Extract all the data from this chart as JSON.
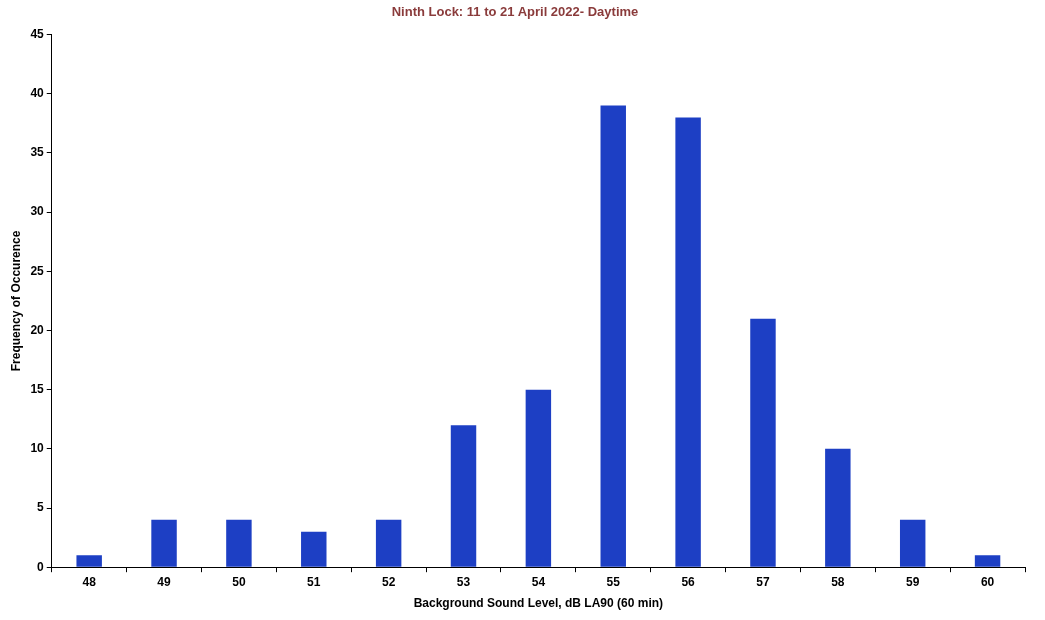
{
  "chart_data": {
    "type": "bar",
    "title": "Ninth Lock: 11 to 21 April 2022- Daytime",
    "xlabel": "Background Sound Level, dB LA90 (60 min)",
    "ylabel": "Frequency of Occurence",
    "categories": [
      "48",
      "49",
      "50",
      "51",
      "52",
      "53",
      "54",
      "55",
      "56",
      "57",
      "58",
      "59",
      "60"
    ],
    "values": [
      1,
      4,
      4,
      3,
      4,
      12,
      15,
      39,
      38,
      21,
      10,
      4,
      1
    ],
    "color": "#1d3fc4",
    "ylim": [
      0,
      45
    ],
    "yticks": [
      0,
      5,
      10,
      15,
      20,
      25,
      30,
      35,
      40,
      45
    ]
  }
}
